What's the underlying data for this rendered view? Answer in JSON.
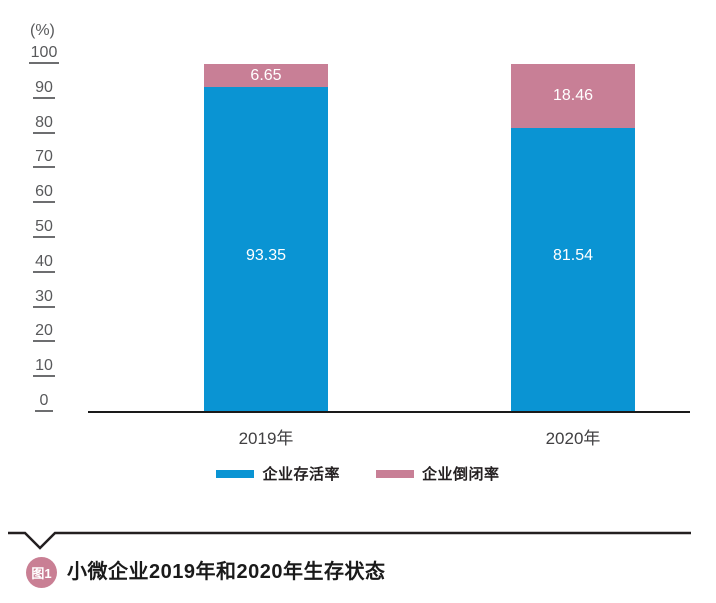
{
  "chart_data": {
    "type": "bar",
    "stacked": true,
    "title": "",
    "unit_label": "(%)",
    "categories": [
      "2019年",
      "2020年"
    ],
    "series": [
      {
        "name": "企业存活率",
        "color": "#0a94d3",
        "values": [
          93.35,
          81.54
        ]
      },
      {
        "name": "企业倒闭率",
        "color": "#c87f96",
        "values": [
          6.65,
          18.46
        ]
      }
    ],
    "ylim": [
      0,
      100
    ],
    "yticks": [
      0,
      10,
      20,
      30,
      40,
      50,
      60,
      70,
      80,
      90,
      100
    ],
    "grid": false,
    "legend_position": "bottom",
    "data_labels": [
      "93.35",
      "81.54",
      "6.65",
      "18.46"
    ]
  },
  "caption": {
    "badge": "图1",
    "title": "小微企业2019年和2020年生存状态"
  },
  "colors": {
    "survival_blue": "#0a94d3",
    "closure_pink": "#c87f96",
    "axis_black": "#1a1a1a",
    "tick_gray": "#58595b",
    "badge_pink": "#c97f94"
  }
}
